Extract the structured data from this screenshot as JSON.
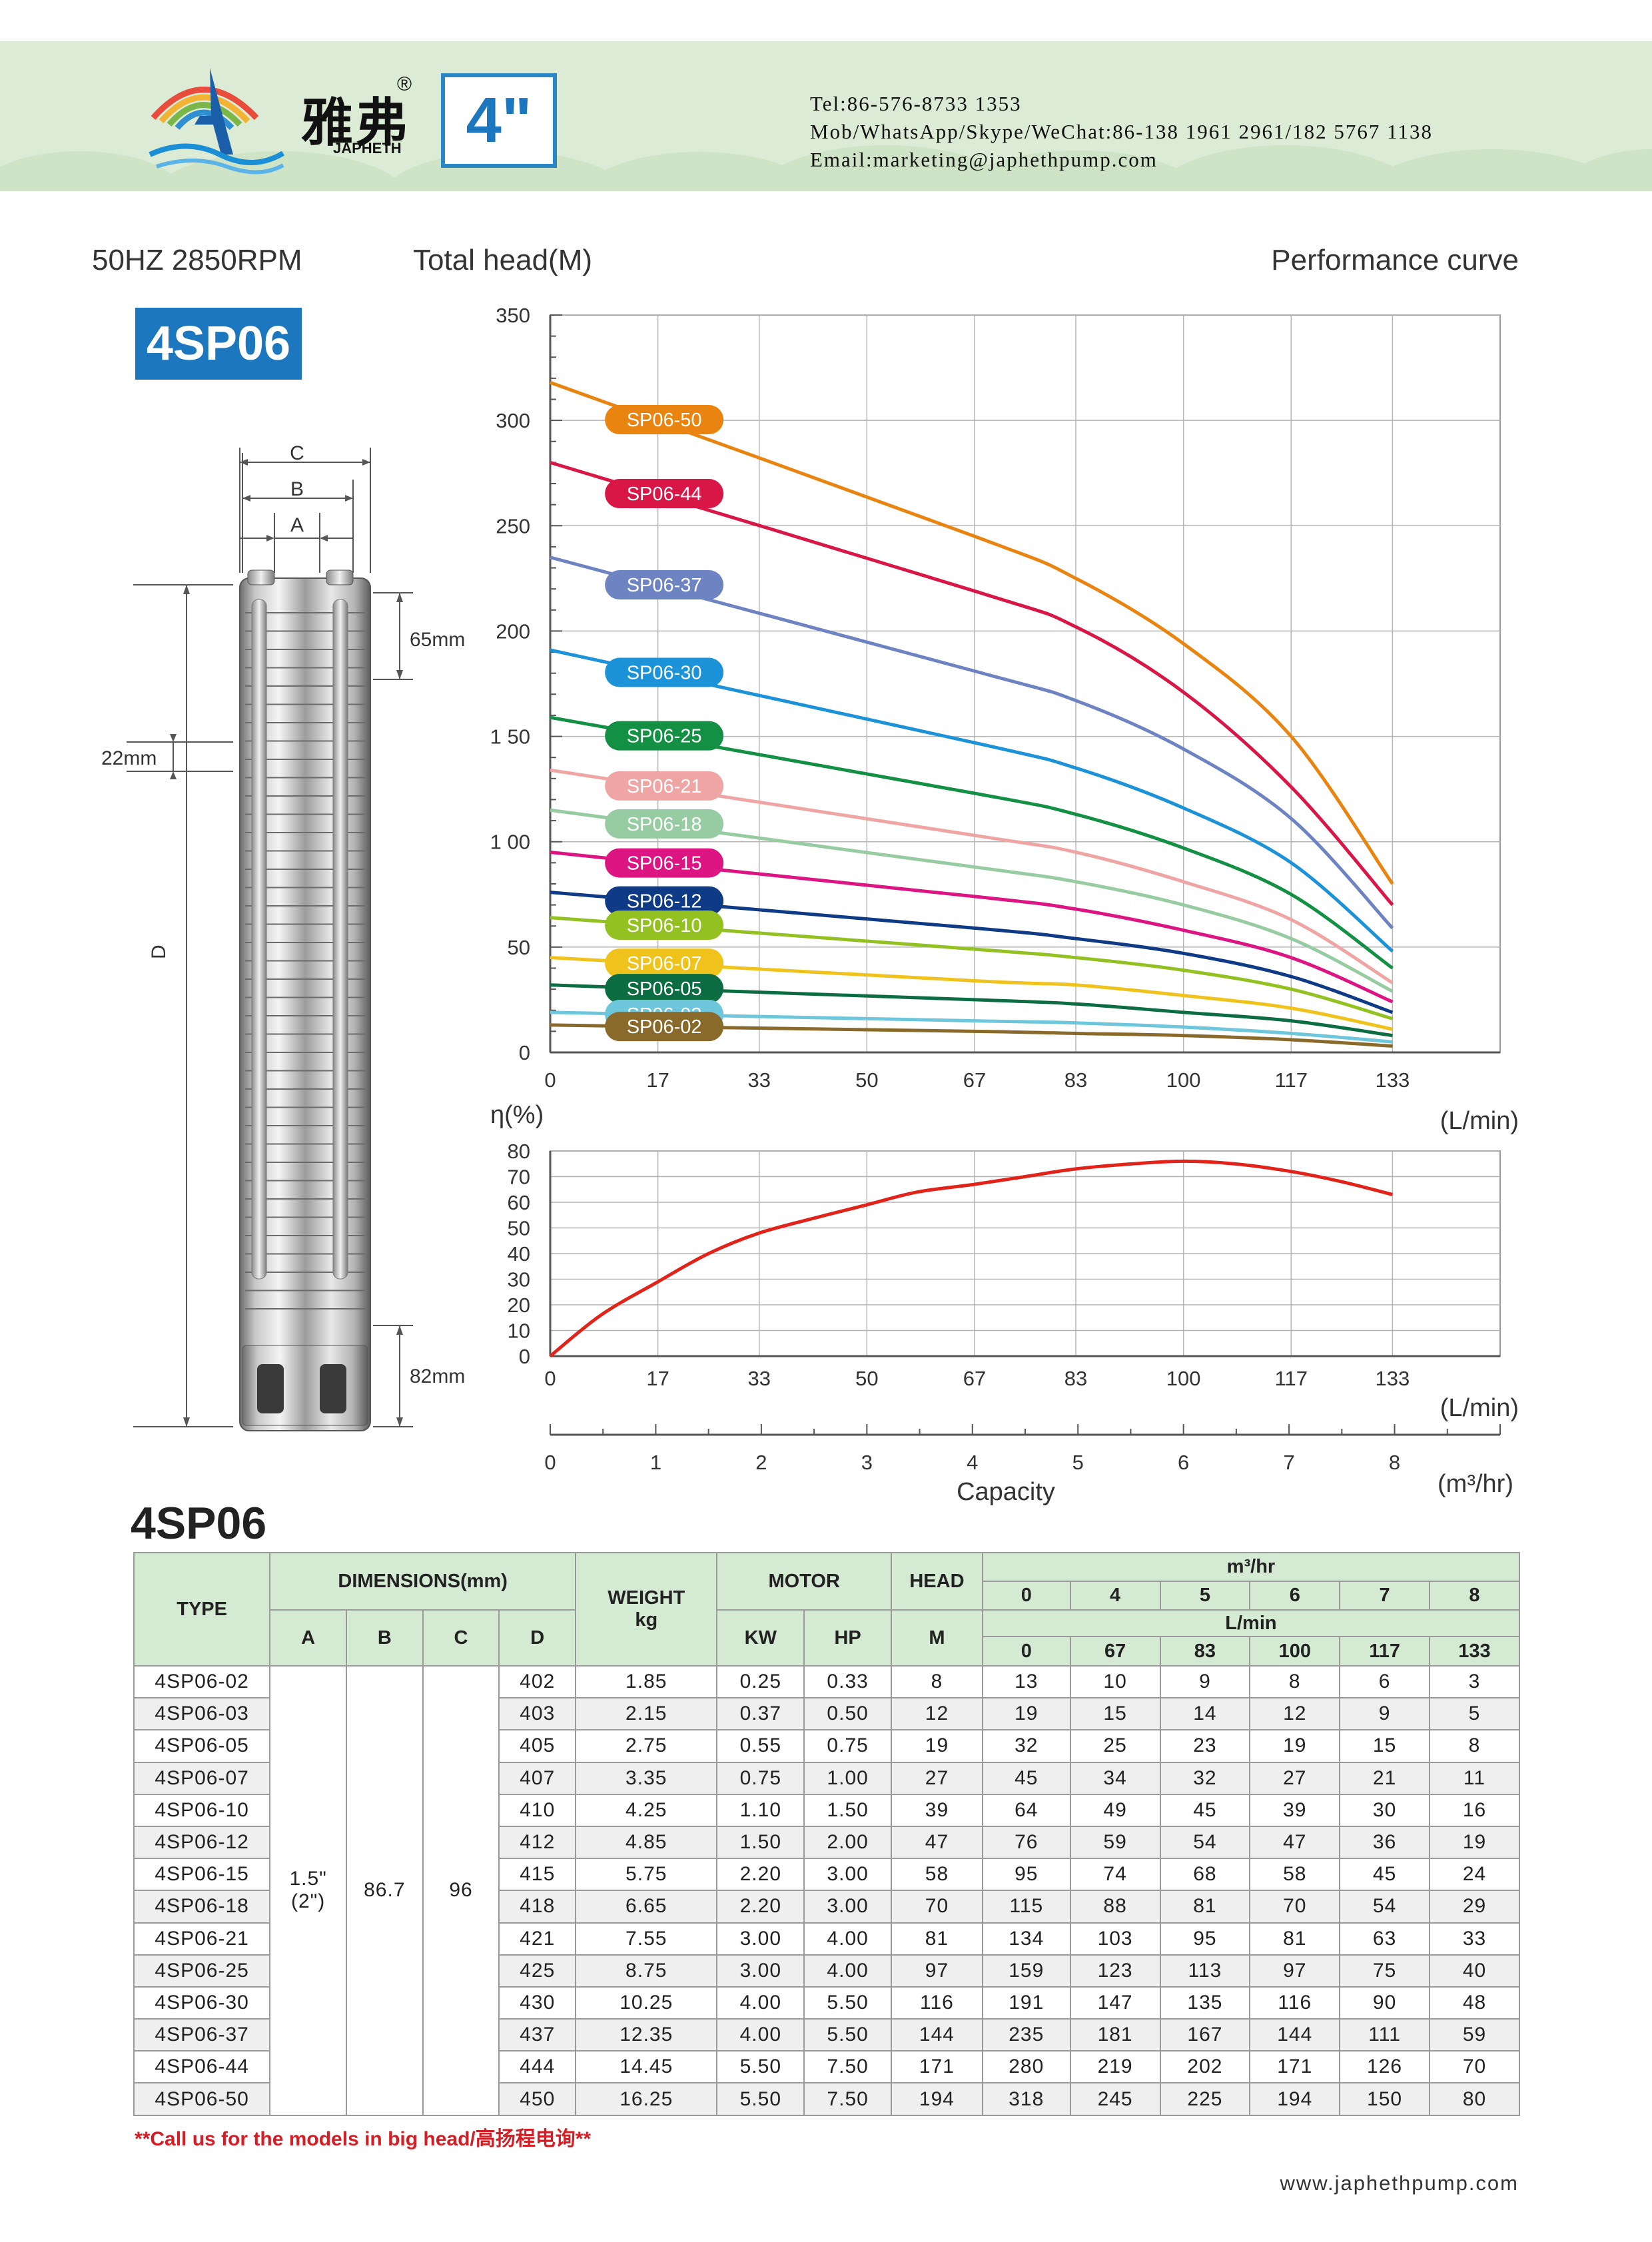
{
  "header": {
    "brand_cn": "雅弗",
    "brand_en": "JAPHETH",
    "registered": "®",
    "size_label": "4\"",
    "tel": "Tel:86-576-8733 1353",
    "mob": "Mob/WhatsApp/Skype/WeChat:86-138 1961 2961/182 5767 1138",
    "email": "Email:marketing@japhethpump.com"
  },
  "section": {
    "spec": "50HZ   2850RPM",
    "head_label": "Total head(M)",
    "curve_title": "Performance curve",
    "model": "4SP06",
    "table_title": "4SP06"
  },
  "dimensions_drawing": {
    "label_a": "A",
    "label_b": "B",
    "label_c": "C",
    "label_d": "D",
    "top_height": "65mm",
    "stage_height": "22mm",
    "bottom_height": "82mm"
  },
  "colors": {
    "header_bg": "#dcebd5",
    "accent_blue": "#1d77bf",
    "efficiency_curve": "#e2231a",
    "table_header_bg": "#d5ead3",
    "note_red": "#d31e25"
  },
  "chart_data": [
    {
      "type": "line",
      "title": "Performance curve",
      "xlabel": "(L/min)",
      "ylabel": "Total head(M)",
      "x_ticks": [
        0,
        17,
        33,
        50,
        67,
        83,
        100,
        117,
        133
      ],
      "y_ticks": [
        0,
        50,
        100,
        150,
        200,
        250,
        300,
        350
      ],
      "y_tick_labels": [
        "0",
        "50",
        "1 00",
        "1 50",
        "200",
        "250",
        "300",
        "350"
      ],
      "xlim": [
        0,
        150
      ],
      "ylim": [
        0,
        350
      ],
      "grid": true,
      "x": [
        0,
        67,
        83,
        100,
        117,
        133
      ],
      "series": [
        {
          "name": "SP06-50",
          "color": "#e8840f",
          "values": [
            318,
            245,
            225,
            194,
            150,
            80
          ]
        },
        {
          "name": "SP06-44",
          "color": "#d81747",
          "values": [
            280,
            219,
            202,
            171,
            126,
            70
          ]
        },
        {
          "name": "SP06-37",
          "color": "#6e84c2",
          "values": [
            235,
            181,
            167,
            144,
            111,
            59
          ]
        },
        {
          "name": "SP06-30",
          "color": "#1c93d8",
          "values": [
            191,
            147,
            135,
            116,
            90,
            48
          ]
        },
        {
          "name": "SP06-25",
          "color": "#139043",
          "values": [
            159,
            123,
            113,
            97,
            75,
            40
          ]
        },
        {
          "name": "SP06-21",
          "color": "#f0a5a5",
          "values": [
            134,
            103,
            95,
            81,
            63,
            33
          ]
        },
        {
          "name": "SP06-18",
          "color": "#97cba2",
          "values": [
            115,
            88,
            81,
            70,
            54,
            29
          ]
        },
        {
          "name": "SP06-15",
          "color": "#dc1582",
          "values": [
            95,
            74,
            68,
            58,
            45,
            24
          ]
        },
        {
          "name": "SP06-12",
          "color": "#0e3a86",
          "values": [
            76,
            59,
            54,
            47,
            36,
            19
          ]
        },
        {
          "name": "SP06-10",
          "color": "#93c121",
          "values": [
            64,
            49,
            45,
            39,
            30,
            16
          ]
        },
        {
          "name": "SP06-07",
          "color": "#f0c21c",
          "values": [
            45,
            34,
            32,
            27,
            21,
            11
          ]
        },
        {
          "name": "SP06-05",
          "color": "#0b6d41",
          "values": [
            32,
            25,
            23,
            19,
            15,
            8
          ]
        },
        {
          "name": "SP06-03",
          "color": "#6ec6dc",
          "values": [
            19,
            15,
            14,
            12,
            9,
            5
          ]
        },
        {
          "name": "SP06-02",
          "color": "#8a6a2a",
          "values": [
            13,
            10,
            9,
            8,
            6,
            3
          ]
        }
      ]
    },
    {
      "type": "line",
      "title": "",
      "ylabel": "η(%)",
      "xlabel": "(L/min)",
      "x_ticks": [
        0,
        17,
        33,
        50,
        67,
        83,
        100,
        117,
        133
      ],
      "y_ticks": [
        0,
        10,
        20,
        30,
        40,
        50,
        60,
        70,
        80
      ],
      "xlim": [
        0,
        150
      ],
      "ylim": [
        0,
        80
      ],
      "grid": true,
      "series": [
        {
          "name": "",
          "color": "#e2231a",
          "x": [
            0,
            8,
            17,
            25,
            33,
            42,
            50,
            58,
            67,
            75,
            83,
            92,
            100,
            108,
            117,
            125,
            133
          ],
          "values": [
            0,
            16,
            29,
            40,
            48,
            54,
            59,
            64,
            67,
            70,
            73,
            75,
            76,
            75,
            72,
            68,
            63
          ]
        }
      ]
    },
    {
      "type": "axis",
      "xlabel": "Capacity",
      "unit": "(m³/hr)",
      "ticks": [
        0,
        1,
        2,
        3,
        4,
        5,
        6,
        7,
        8
      ],
      "xlim": [
        0,
        9
      ]
    }
  ],
  "table": {
    "headers": {
      "type": "TYPE",
      "dimensions": "DIMENSIONS(mm)",
      "a": "A",
      "b": "B",
      "c": "C",
      "d": "D",
      "weight": "WEIGHT",
      "weight_unit": "kg",
      "motor": "MOTOR",
      "kw": "KW",
      "hp": "HP",
      "head": "HEAD",
      "head_unit": "M",
      "m3hr": "m³/hr",
      "lmin": "L/min",
      "m3hr_values": [
        "0",
        "4",
        "5",
        "6",
        "7",
        "8"
      ],
      "lmin_values": [
        "0",
        "67",
        "83",
        "100",
        "117",
        "133"
      ]
    },
    "merged": {
      "a_line1": "1.5\"",
      "a_line2": "(2\")",
      "b": "86.7",
      "c": "96"
    },
    "rows": [
      {
        "type": "4SP06-02",
        "d": "402",
        "weight": "1.85",
        "kw": "0.25",
        "hp": "0.33",
        "head": "8",
        "q": [
          "13",
          "10",
          "9",
          "8",
          "6",
          "3"
        ]
      },
      {
        "type": "4SP06-03",
        "d": "403",
        "weight": "2.15",
        "kw": "0.37",
        "hp": "0.50",
        "head": "12",
        "q": [
          "19",
          "15",
          "14",
          "12",
          "9",
          "5"
        ]
      },
      {
        "type": "4SP06-05",
        "d": "405",
        "weight": "2.75",
        "kw": "0.55",
        "hp": "0.75",
        "head": "19",
        "q": [
          "32",
          "25",
          "23",
          "19",
          "15",
          "8"
        ]
      },
      {
        "type": "4SP06-07",
        "d": "407",
        "weight": "3.35",
        "kw": "0.75",
        "hp": "1.00",
        "head": "27",
        "q": [
          "45",
          "34",
          "32",
          "27",
          "21",
          "11"
        ]
      },
      {
        "type": "4SP06-10",
        "d": "410",
        "weight": "4.25",
        "kw": "1.10",
        "hp": "1.50",
        "head": "39",
        "q": [
          "64",
          "49",
          "45",
          "39",
          "30",
          "16"
        ]
      },
      {
        "type": "4SP06-12",
        "d": "412",
        "weight": "4.85",
        "kw": "1.50",
        "hp": "2.00",
        "head": "47",
        "q": [
          "76",
          "59",
          "54",
          "47",
          "36",
          "19"
        ]
      },
      {
        "type": "4SP06-15",
        "d": "415",
        "weight": "5.75",
        "kw": "2.20",
        "hp": "3.00",
        "head": "58",
        "q": [
          "95",
          "74",
          "68",
          "58",
          "45",
          "24"
        ]
      },
      {
        "type": "4SP06-18",
        "d": "418",
        "weight": "6.65",
        "kw": "2.20",
        "hp": "3.00",
        "head": "70",
        "q": [
          "115",
          "88",
          "81",
          "70",
          "54",
          "29"
        ]
      },
      {
        "type": "4SP06-21",
        "d": "421",
        "weight": "7.55",
        "kw": "3.00",
        "hp": "4.00",
        "head": "81",
        "q": [
          "134",
          "103",
          "95",
          "81",
          "63",
          "33"
        ]
      },
      {
        "type": "4SP06-25",
        "d": "425",
        "weight": "8.75",
        "kw": "3.00",
        "hp": "4.00",
        "head": "97",
        "q": [
          "159",
          "123",
          "113",
          "97",
          "75",
          "40"
        ]
      },
      {
        "type": "4SP06-30",
        "d": "430",
        "weight": "10.25",
        "kw": "4.00",
        "hp": "5.50",
        "head": "116",
        "q": [
          "191",
          "147",
          "135",
          "116",
          "90",
          "48"
        ]
      },
      {
        "type": "4SP06-37",
        "d": "437",
        "weight": "12.35",
        "kw": "4.00",
        "hp": "5.50",
        "head": "144",
        "q": [
          "235",
          "181",
          "167",
          "144",
          "111",
          "59"
        ]
      },
      {
        "type": "4SP06-44",
        "d": "444",
        "weight": "14.45",
        "kw": "5.50",
        "hp": "7.50",
        "head": "171",
        "q": [
          "280",
          "219",
          "202",
          "171",
          "126",
          "70"
        ]
      },
      {
        "type": "4SP06-50",
        "d": "450",
        "weight": "16.25",
        "kw": "5.50",
        "hp": "7.50",
        "head": "194",
        "q": [
          "318",
          "245",
          "225",
          "194",
          "150",
          "80"
        ]
      }
    ]
  },
  "footer": {
    "note": "**Call us for the models in big head/高扬程电询**",
    "website": "www.japhethpump.com"
  }
}
